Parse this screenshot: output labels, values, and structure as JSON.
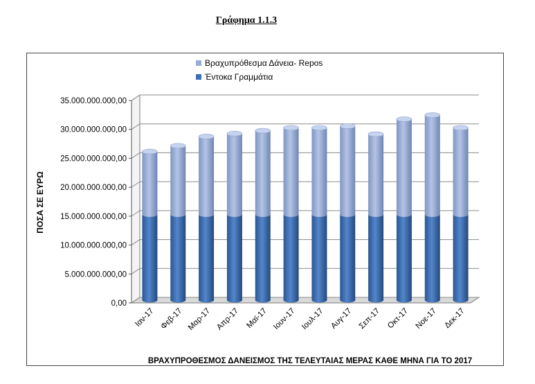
{
  "heading": "Γράφημα 1.1.3",
  "chart_data": {
    "type": "bar",
    "stacked": true,
    "categories": [
      "Ιαν-17",
      "Φεβ-17",
      "Μαρ-17",
      "Απρ-17",
      "Μαϊ-17",
      "Ιουν-17",
      "Ιουλ-17",
      "Αυγ-17",
      "Σεπ-17",
      "Οκτ-17",
      "Νοε-17",
      "Δεκ-17"
    ],
    "series": [
      {
        "name": "Έντοκα Γραμμάτια",
        "color": "#3d6fb4",
        "values": [
          14800000000,
          14800000000,
          14800000000,
          14800000000,
          14800000000,
          14800000000,
          14800000000,
          14800000000,
          14800000000,
          14800000000,
          14800000000,
          14800000000
        ]
      },
      {
        "name": "Βραχυπρόθεσμα Δάνεια- Repos",
        "color": "#97acd6",
        "values": [
          10900000000,
          11900000000,
          13500000000,
          14000000000,
          14500000000,
          15000000000,
          15000000000,
          15300000000,
          13900000000,
          16500000000,
          17200000000,
          15000000000
        ]
      }
    ],
    "legend_order": [
      1,
      0
    ],
    "ylabel": "ΠΟΣΑ ΣΕ ΕΥΡΩ",
    "xlabel": "ΒΡΑΧΥΠΡΟΘΕΣΜΟΣ ΔΑΝΕΙΣΜΟΣ ΤΗΣ ΤΕΛΕΥΤΑΙΑΣ ΜΕΡΑΣ ΚΑΘΕ ΜΗΝΑ ΓΙΑ ΤΟ 2017",
    "ylim": [
      0,
      35000000000
    ],
    "yticks": [
      0,
      5000000000,
      10000000000,
      15000000000,
      20000000000,
      25000000000,
      30000000000,
      35000000000
    ],
    "ytick_labels": [
      "0,00",
      "5.000.000.000,00",
      "10.000.000.000,00",
      "15.000.000.000,00",
      "20.000.000.000,00",
      "25.000.000.000,00",
      "30.000.000.000,00",
      "35.000.000.000,00"
    ],
    "grid": true,
    "legend_position": "top"
  }
}
